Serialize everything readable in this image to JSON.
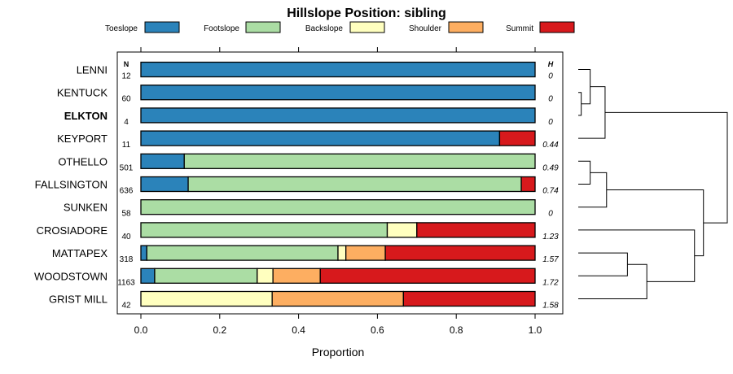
{
  "chart_data": {
    "type": "stacked-bar-horizontal",
    "title": "Hillslope Position: sibling",
    "xlabel": "Proportion",
    "xlim": [
      0,
      1
    ],
    "xticks": [
      "0.0",
      "0.2",
      "0.4",
      "0.6",
      "0.8",
      "1.0"
    ],
    "n_header": "N",
    "h_header": "H",
    "legend_position": "top",
    "categories": [
      "Toeslope",
      "Footslope",
      "Backslope",
      "Shoulder",
      "Summit"
    ],
    "colors": [
      "#2b83ba",
      "#abdda4",
      "#ffffbf",
      "#fdae61",
      "#d7191c"
    ],
    "rows": [
      {
        "name": "LENNI",
        "n": "12",
        "h": "0",
        "bold": false,
        "values": [
          1.0,
          0,
          0,
          0,
          0
        ]
      },
      {
        "name": "KENTUCK",
        "n": "60",
        "h": "0",
        "bold": false,
        "values": [
          1.0,
          0,
          0,
          0,
          0
        ]
      },
      {
        "name": "ELKTON",
        "n": "4",
        "h": "0",
        "bold": true,
        "values": [
          1.0,
          0,
          0,
          0,
          0
        ]
      },
      {
        "name": "KEYPORT",
        "n": "11",
        "h": "0.44",
        "bold": false,
        "values": [
          0.91,
          0,
          0,
          0,
          0.09
        ]
      },
      {
        "name": "OTHELLO",
        "n": "501",
        "h": "0.49",
        "bold": false,
        "values": [
          0.11,
          0.89,
          0,
          0,
          0
        ]
      },
      {
        "name": "FALLSINGTON",
        "n": "636",
        "h": "0.74",
        "bold": false,
        "values": [
          0.12,
          0.845,
          0,
          0,
          0.035
        ]
      },
      {
        "name": "SUNKEN",
        "n": "58",
        "h": "0",
        "bold": false,
        "values": [
          0,
          1.0,
          0,
          0,
          0
        ]
      },
      {
        "name": "CROSIADORE",
        "n": "40",
        "h": "1.23",
        "bold": false,
        "values": [
          0,
          0.625,
          0.075,
          0,
          0.3
        ]
      },
      {
        "name": "MATTAPEX",
        "n": "318",
        "h": "1.57",
        "bold": false,
        "values": [
          0.015,
          0.485,
          0.02,
          0.1,
          0.38
        ]
      },
      {
        "name": "WOODSTOWN",
        "n": "1163",
        "h": "1.72",
        "bold": false,
        "values": [
          0.035,
          0.26,
          0.04,
          0.12,
          0.545
        ]
      },
      {
        "name": "GRIST MILL",
        "n": "42",
        "h": "1.58",
        "bold": false,
        "values": [
          0,
          0,
          0.333,
          0.333,
          0.334
        ]
      }
    ],
    "dendrogram": {
      "leaf_order": [
        "LENNI",
        "KENTUCK",
        "ELKTON",
        "KEYPORT",
        "OTHELLO",
        "FALLSINGTON",
        "SUNKEN",
        "CROSIADORE",
        "MATTAPEX",
        "WOODSTOWN",
        "GRIST MILL"
      ],
      "merges": [
        {
          "a": "KENTUCK",
          "b": "ELKTON",
          "height": 0.02
        },
        {
          "a": "LENNI",
          "b": "m0",
          "height": 0.08
        },
        {
          "a": "m1",
          "b": "KEYPORT",
          "height": 0.18
        },
        {
          "a": "OTHELLO",
          "b": "FALLSINGTON",
          "height": 0.08
        },
        {
          "a": "m3",
          "b": "SUNKEN",
          "height": 0.19
        },
        {
          "a": "MATTAPEX",
          "b": "WOODSTOWN",
          "height": 0.33
        },
        {
          "a": "m5",
          "b": "GRIST MILL",
          "height": 0.46
        },
        {
          "a": "CROSIADORE",
          "b": "m6",
          "height": 0.78
        },
        {
          "a": "m4",
          "b": "m7",
          "height": 0.84
        },
        {
          "a": "m2",
          "b": "m8",
          "height": 1.0
        }
      ]
    }
  }
}
